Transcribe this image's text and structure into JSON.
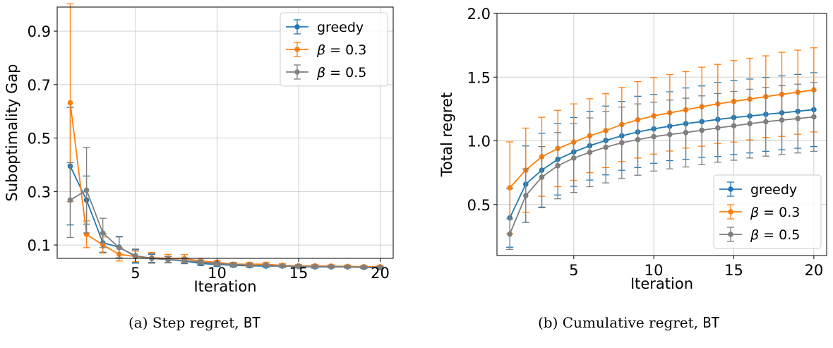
{
  "captions": [
    {
      "prefix": "(a) Step regret, ",
      "code": "BT"
    },
    {
      "prefix": "(b) Cumulative regret, ",
      "code": "BT"
    }
  ],
  "chart_data": [
    {
      "type": "line",
      "xlabel": "Iteration",
      "ylabel": "Suboptimality Gap",
      "xlim": [
        0.2,
        20.8
      ],
      "ylim": [
        0.05,
        0.99
      ],
      "xticks": [
        5,
        10,
        15,
        20
      ],
      "yticks": [
        0.1,
        0.3,
        0.5,
        0.7,
        0.9
      ],
      "ytick_labels": [
        "0.1",
        "0.3",
        "0.5",
        "0.7",
        "0.9"
      ],
      "grid": true,
      "legend_position": "top-right",
      "x": [
        1,
        2,
        3,
        4,
        5,
        6,
        7,
        8,
        9,
        10,
        11,
        12,
        13,
        14,
        15,
        16,
        17,
        18,
        19,
        20
      ],
      "series": [
        {
          "name": "greedy",
          "color": "#1f77b4",
          "values": [
            0.395,
            0.268,
            0.108,
            0.092,
            0.057,
            0.05,
            0.045,
            0.04,
            0.031,
            0.027,
            0.024,
            0.022,
            0.021,
            0.021,
            0.019,
            0.018,
            0.018,
            0.018,
            0.016,
            0.015
          ],
          "err": [
            0.22,
            0.09,
            0.035,
            0.04,
            0.025,
            0.015,
            0.012,
            0.01,
            0.008,
            0.007,
            0.006,
            0.006,
            0.005,
            0.005,
            0.005,
            0.005,
            0.004,
            0.004,
            0.004,
            0.004
          ]
        },
        {
          "name": "β = 0.3",
          "name_sym": "β",
          "name_rest": " = 0.3",
          "color": "#ff7f0e",
          "values": [
            0.632,
            0.14,
            0.1,
            0.065,
            0.057,
            0.052,
            0.05,
            0.049,
            0.04,
            0.035,
            0.028,
            0.028,
            0.028,
            0.024,
            0.022,
            0.022,
            0.021,
            0.02,
            0.019,
            0.019
          ],
          "err": [
            0.37,
            0.05,
            0.03,
            0.025,
            0.02,
            0.02,
            0.015,
            0.015,
            0.01,
            0.008,
            0.007,
            0.007,
            0.007,
            0.006,
            0.005,
            0.005,
            0.005,
            0.005,
            0.004,
            0.004
          ]
        },
        {
          "name": "β = 0.5",
          "name_sym": "β",
          "name_rest": " = 0.5",
          "color": "#7f7f7f",
          "values": [
            0.268,
            0.305,
            0.145,
            0.09,
            0.06,
            0.05,
            0.046,
            0.042,
            0.036,
            0.03,
            0.027,
            0.024,
            0.024,
            0.021,
            0.02,
            0.019,
            0.019,
            0.018,
            0.017,
            0.016
          ],
          "err": [
            0.14,
            0.16,
            0.055,
            0.04,
            0.025,
            0.018,
            0.012,
            0.01,
            0.008,
            0.007,
            0.006,
            0.006,
            0.005,
            0.005,
            0.005,
            0.005,
            0.004,
            0.004,
            0.004,
            0.004
          ]
        }
      ]
    },
    {
      "type": "line",
      "xlabel": "Iteration",
      "ylabel": "Total regret",
      "xlim": [
        0.2,
        20.8
      ],
      "ylim": [
        0.1,
        2.0
      ],
      "xticks": [
        5,
        10,
        15,
        20
      ],
      "yticks": [
        0.5,
        1.0,
        1.5,
        2.0
      ],
      "ytick_labels": [
        "0.5",
        "1.0",
        "1.5",
        "2.0"
      ],
      "grid": true,
      "legend_position": "bottom-right",
      "x": [
        1,
        2,
        3,
        4,
        5,
        6,
        7,
        8,
        9,
        10,
        11,
        12,
        13,
        14,
        15,
        16,
        17,
        18,
        19,
        20
      ],
      "series": [
        {
          "name": "greedy",
          "color": "#1f77b4",
          "values": [
            0.395,
            0.66,
            0.77,
            0.855,
            0.913,
            0.962,
            1.003,
            1.039,
            1.07,
            1.094,
            1.115,
            1.135,
            1.151,
            1.168,
            1.183,
            1.195,
            1.208,
            1.22,
            1.232,
            1.245
          ],
          "err": [
            0.23,
            0.3,
            0.29,
            0.28,
            0.27,
            0.27,
            0.27,
            0.27,
            0.28,
            0.27,
            0.27,
            0.28,
            0.28,
            0.29,
            0.29,
            0.29,
            0.29,
            0.29,
            0.29,
            0.29
          ]
        },
        {
          "name": "β = 0.3",
          "name_sym": "β",
          "name_rest": " = 0.3",
          "color": "#ff7f0e",
          "values": [
            0.632,
            0.77,
            0.875,
            0.94,
            0.99,
            1.04,
            1.08,
            1.128,
            1.165,
            1.196,
            1.22,
            1.243,
            1.268,
            1.29,
            1.31,
            1.328,
            1.347,
            1.365,
            1.382,
            1.4
          ],
          "err": [
            0.36,
            0.33,
            0.31,
            0.3,
            0.3,
            0.29,
            0.29,
            0.29,
            0.3,
            0.3,
            0.3,
            0.3,
            0.31,
            0.31,
            0.32,
            0.32,
            0.32,
            0.33,
            0.33,
            0.33
          ]
        },
        {
          "name": "β = 0.5",
          "name_sym": "β",
          "name_rest": " = 0.5",
          "color": "#7f7f7f",
          "values": [
            0.268,
            0.57,
            0.715,
            0.805,
            0.865,
            0.91,
            0.95,
            0.985,
            1.01,
            1.033,
            1.05,
            1.065,
            1.083,
            1.102,
            1.118,
            1.135,
            1.15,
            1.163,
            1.175,
            1.188
          ],
          "err": [
            0.12,
            0.21,
            0.24,
            0.26,
            0.27,
            0.27,
            0.28,
            0.28,
            0.28,
            0.27,
            0.27,
            0.27,
            0.27,
            0.27,
            0.27,
            0.27,
            0.27,
            0.27,
            0.27,
            0.27
          ]
        }
      ]
    }
  ]
}
